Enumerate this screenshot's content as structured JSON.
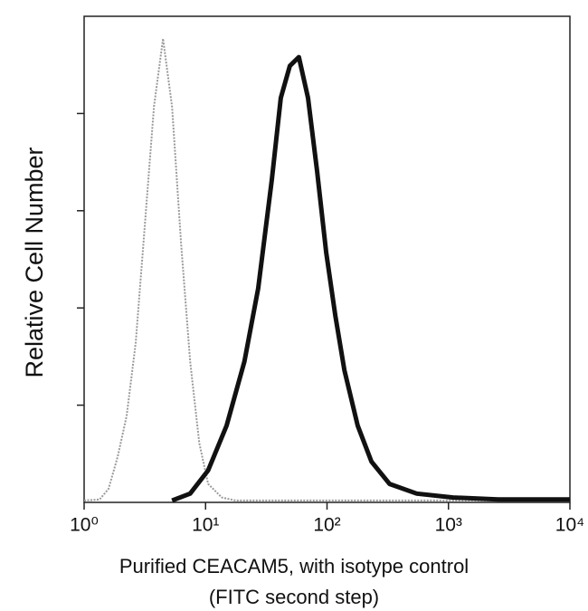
{
  "chart_data": {
    "type": "line",
    "xlabel": [
      "Purified CEACAM5, with isotype control",
      "(FITC second step)"
    ],
    "ylabel": "Relative Cell Number",
    "xscale": "log",
    "xlim": [
      1,
      10000
    ],
    "xticks": [
      {
        "value": 1,
        "label": "10⁰"
      },
      {
        "value": 10,
        "label": "10¹"
      },
      {
        "value": 100,
        "label": "10²"
      },
      {
        "value": 1000,
        "label": "10³"
      },
      {
        "value": 10000,
        "label": "10⁴"
      }
    ],
    "ylim": [
      0,
      5
    ],
    "yticks": [
      1,
      2,
      3,
      4
    ],
    "series": [
      {
        "color": "#9a9a9a",
        "dash": true,
        "x": [
          1,
          1.34,
          1.59,
          1.89,
          2.24,
          2.66,
          3.16,
          3.76,
          4.46,
          5.3,
          6.29,
          7.47,
          8.87,
          10.5,
          13.6,
          17.6,
          10000
        ],
        "values": [
          0.02,
          0.03,
          0.14,
          0.47,
          0.89,
          1.64,
          2.85,
          4.07,
          4.77,
          4.07,
          2.66,
          1.45,
          0.61,
          0.19,
          0.05,
          0.02,
          0.02
        ]
      },
      {
        "color": "#111111",
        "dash": false,
        "x": [
          5.3,
          7.47,
          10.5,
          14.9,
          20.9,
          27.1,
          35.1,
          41.6,
          49.4,
          58.7,
          69.7,
          82.8,
          98.4,
          117,
          139,
          179,
          232,
          327,
          548,
          1089,
          2570,
          10000
        ],
        "values": [
          0.02,
          0.09,
          0.33,
          0.79,
          1.45,
          2.2,
          3.32,
          4.16,
          4.49,
          4.58,
          4.16,
          3.41,
          2.57,
          1.92,
          1.36,
          0.79,
          0.42,
          0.19,
          0.09,
          0.05,
          0.03,
          0.03
        ]
      }
    ]
  }
}
